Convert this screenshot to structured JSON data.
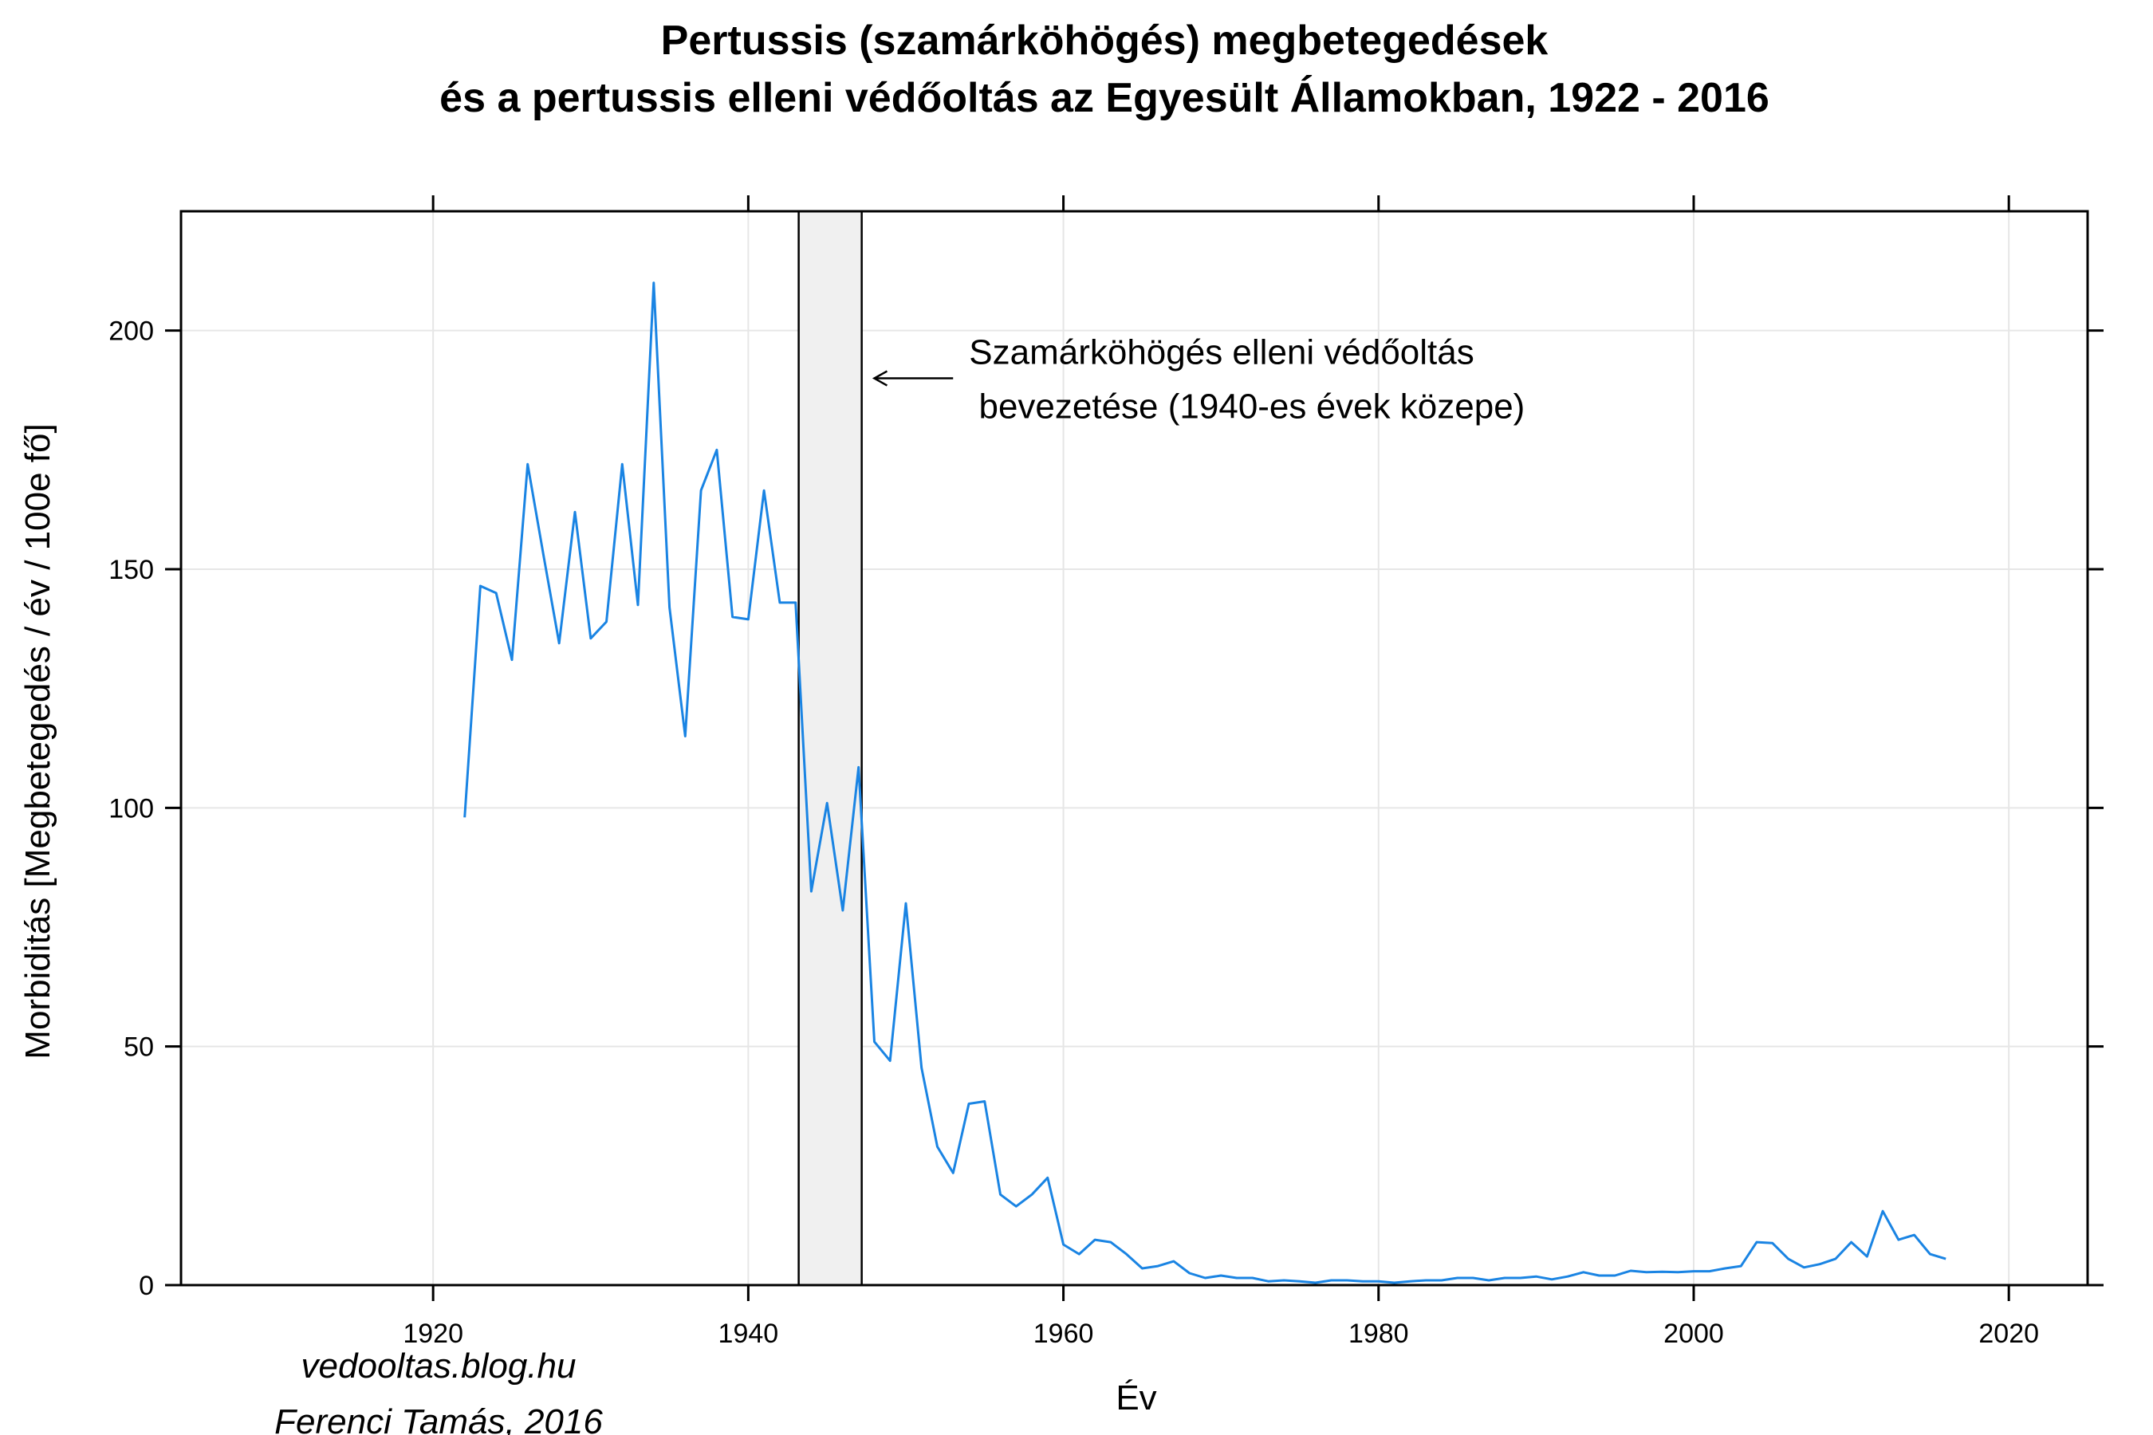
{
  "chart_data": {
    "type": "line",
    "title_lines": [
      "Pertussis (szamárköhögés) megbetegedések",
      "és a pertussis elleni védőoltás az Egyesült Államokban, 1922 - 2016"
    ],
    "xlabel": "Év",
    "ylabel": "Morbiditás [Megbetegedés / év / 100e fő]",
    "xlim": [
      1904,
      2025
    ],
    "ylim": [
      0,
      225
    ],
    "xticks": [
      1920,
      1940,
      1960,
      1980,
      2000,
      2020
    ],
    "xtick_labels": [
      "1920",
      "1940",
      "1960",
      "1980",
      "2000",
      "2020"
    ],
    "yticks": [
      0,
      50,
      100,
      150,
      200
    ],
    "ytick_labels": [
      "0",
      "50",
      "100",
      "150",
      "200"
    ],
    "grid": true,
    "line_color": "#1a84e3",
    "highlight_color": "#f0f0f0",
    "highlight_span": [
      1943.2,
      1947.2
    ],
    "annotation": {
      "lines": [
        "Szamárköhögés elleni védőoltás",
        " bevezetése (1940-es évek közepe)"
      ],
      "arrow_from": [
        1953,
        190
      ],
      "arrow_to": [
        1948,
        190
      ]
    },
    "credits": [
      "vedooltas.blog.hu",
      "Ferenci Tamás, 2016"
    ],
    "x": [
      1922,
      1923,
      1924,
      1925,
      1926,
      1927,
      1928,
      1929,
      1930,
      1931,
      1932,
      1933,
      1934,
      1935,
      1936,
      1937,
      1938,
      1939,
      1940,
      1941,
      1942,
      1943,
      1944,
      1945,
      1946,
      1947,
      1948,
      1949,
      1950,
      1951,
      1952,
      1953,
      1954,
      1955,
      1956,
      1957,
      1958,
      1959,
      1960,
      1961,
      1962,
      1963,
      1964,
      1965,
      1966,
      1967,
      1968,
      1969,
      1970,
      1971,
      1972,
      1973,
      1974,
      1975,
      1976,
      1977,
      1978,
      1979,
      1980,
      1981,
      1982,
      1983,
      1984,
      1985,
      1986,
      1987,
      1988,
      1989,
      1990,
      1991,
      1992,
      1993,
      1994,
      1995,
      1996,
      1997,
      1998,
      1999,
      2000,
      2001,
      2002,
      2003,
      2004,
      2005,
      2006,
      2007,
      2008,
      2009,
      2010,
      2011,
      2012,
      2013,
      2014,
      2015,
      2016
    ],
    "y": [
      98,
      146.5,
      145,
      131,
      172,
      153,
      134.5,
      162,
      135.5,
      139,
      172,
      142.5,
      210,
      142,
      115,
      166.5,
      175,
      140,
      139.5,
      166.5,
      143,
      143,
      82.5,
      101,
      78.5,
      108.5,
      51,
      47,
      80,
      45.5,
      29,
      23.5,
      38,
      38.5,
      19,
      16.5,
      19,
      22.5,
      8.5,
      6.5,
      9.5,
      9,
      6.5,
      3.5,
      4,
      5,
      2.5,
      1.5,
      2,
      1.5,
      1.5,
      0.8,
      1,
      0.8,
      0.5,
      1,
      1,
      0.8,
      0.8,
      0.5,
      0.8,
      1,
      1,
      1.5,
      1.5,
      1,
      1.5,
      1.5,
      1.8,
      1.2,
      1.8,
      2.7,
      2,
      2,
      3,
      2.7,
      2.8,
      2.7,
      2.9,
      2.9,
      3.5,
      4,
      9,
      8.8,
      5.5,
      3.7,
      4.4,
      5.5,
      9,
      6,
      15.5,
      9.5,
      10.5,
      6.5,
      5.5
    ]
  }
}
